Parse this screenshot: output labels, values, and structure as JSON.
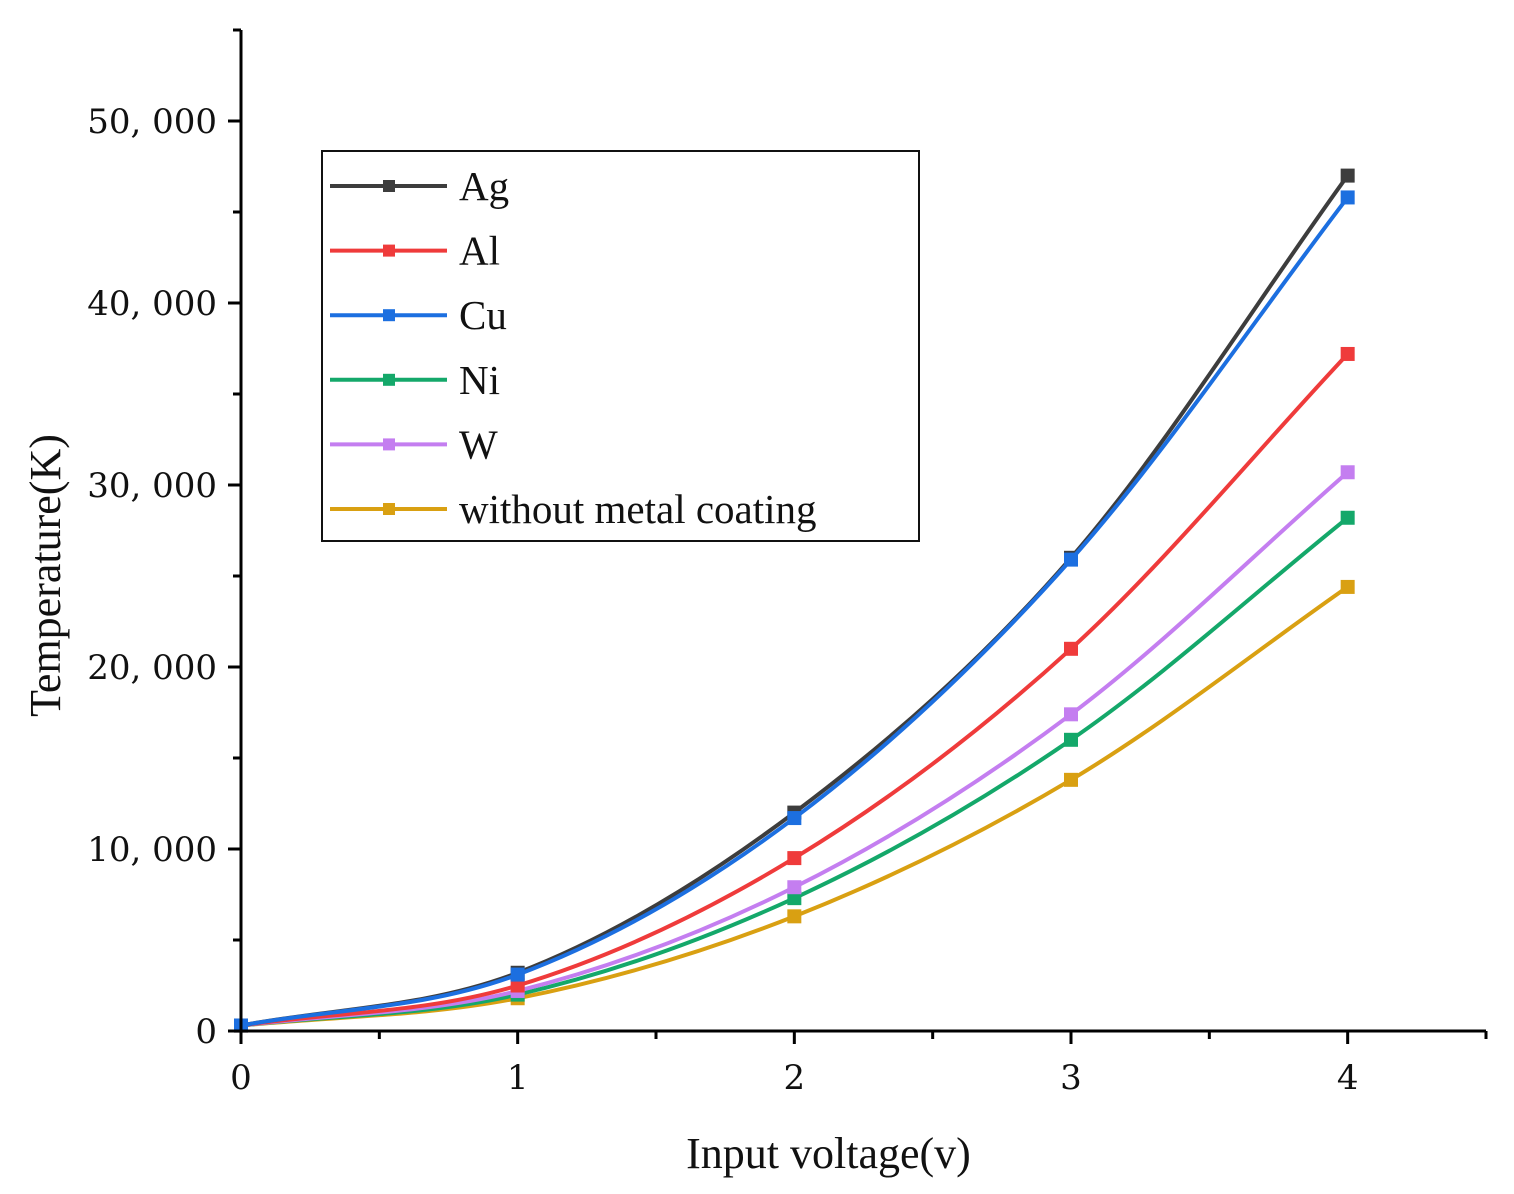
{
  "chart_data": {
    "type": "line",
    "title": "",
    "xlabel": "Input voltage(v)",
    "ylabel": "Temperature(K)",
    "xlim": [
      0,
      4.5
    ],
    "ylim": [
      0,
      55000
    ],
    "x_ticks": [
      0,
      1,
      2,
      3,
      4
    ],
    "x_tick_labels": [
      "0",
      "1",
      "2",
      "3",
      "4"
    ],
    "y_ticks": [
      0,
      10000,
      20000,
      30000,
      40000,
      50000
    ],
    "y_tick_labels": [
      "0",
      "10, 000",
      "20, 000",
      "30, 000",
      "40, 000",
      "50, 000"
    ],
    "grid": false,
    "legend_position": "top-left",
    "x": [
      0,
      1,
      2,
      3,
      4
    ],
    "series": [
      {
        "name": "Ag",
        "color": "#3d3d3d",
        "values": [
          300,
          3200,
          12000,
          26000,
          47000
        ]
      },
      {
        "name": "Al",
        "color": "#ef3b3b",
        "values": [
          300,
          2500,
          9500,
          21000,
          37200
        ]
      },
      {
        "name": "Cu",
        "color": "#1c6fe0",
        "values": [
          300,
          3100,
          11700,
          25900,
          45800
        ]
      },
      {
        "name": "Ni",
        "color": "#14a86a",
        "values": [
          300,
          2000,
          7300,
          16000,
          28200
        ]
      },
      {
        "name": "W",
        "color": "#c47ef0",
        "values": [
          300,
          2200,
          7900,
          17400,
          30700
        ]
      },
      {
        "name": "without metal coating",
        "color": "#d9a012",
        "values": [
          300,
          1800,
          6300,
          13800,
          24400
        ]
      }
    ]
  }
}
